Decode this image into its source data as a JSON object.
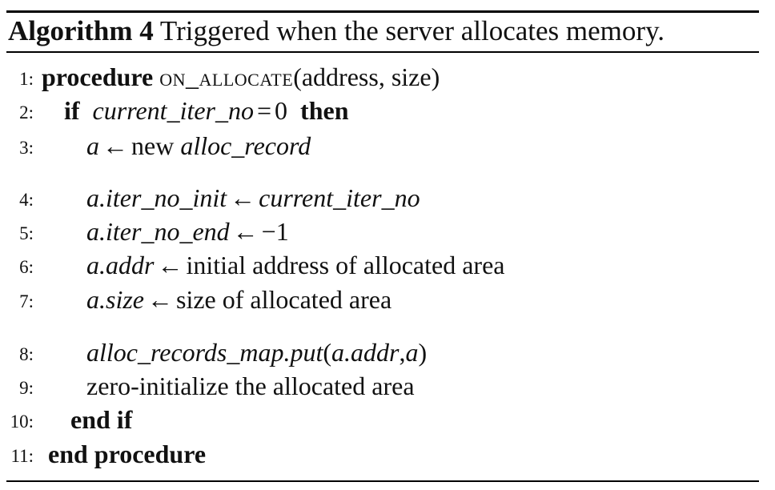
{
  "caption": {
    "label": "Algorithm 4",
    "text": "Triggered when the server allocates memory."
  },
  "lines": [
    {
      "num": "1:",
      "kw": "procedure",
      "name": "on_allocate",
      "args": "(address, size)"
    },
    {
      "num": "2:",
      "kw_if": "if",
      "var": "current_iter_no",
      "op": "=",
      "val": "0",
      "kw_then": "then"
    },
    {
      "num": "3:",
      "lhs": "a",
      "arrow": "←",
      "text": "new",
      "rhs": "alloc_record"
    },
    {
      "num": "4:",
      "lhs": "a.iter_no_init",
      "arrow": "←",
      "rhs": "current_iter_no"
    },
    {
      "num": "5:",
      "lhs": "a.iter_no_end",
      "arrow": "←",
      "rhs": "−1"
    },
    {
      "num": "6:",
      "lhs": "a.addr",
      "arrow": "←",
      "rhs": "initial address of allocated area"
    },
    {
      "num": "7:",
      "lhs": "a.size",
      "arrow": "←",
      "rhs": "size of allocated area"
    },
    {
      "num": "8:",
      "call": "alloc_records_map.put",
      "open": "(",
      "arg1": "a.addr",
      "comma": ",",
      "arg2": "a",
      "close": ")"
    },
    {
      "num": "9:",
      "text": "zero-initialize the allocated area"
    },
    {
      "num": "10:",
      "kw": "end if"
    },
    {
      "num": "11:",
      "kw": "end procedure"
    }
  ]
}
